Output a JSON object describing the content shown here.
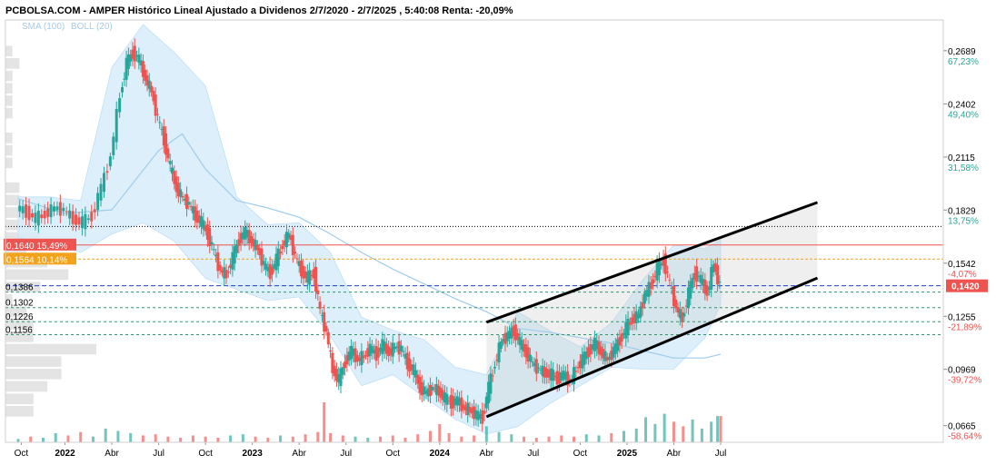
{
  "colors": {
    "up": "#26a69a",
    "down": "#ef5350",
    "bollinger_fill": "#d6ecfa",
    "sma_line": "#9fcdec",
    "channel": "#000000",
    "red_level": "#ef5350",
    "orange_level": "#f2a31b",
    "blue_level": "#1f3fd1",
    "green_level": "#3d8f6c",
    "positive_pct": "#26a69a",
    "negative_pct": "#ef5350"
  },
  "chart_data": {
    "type": "candlestick",
    "title": "PCBOLSA.COM - AMPER Histórico Lineal Ajustado a Dividenos 2/7/2020 - 2/7/2025 , 5:40:08 Renta: -20,09%",
    "legend": [
      "SMA (100)",
      "BOLL (20)"
    ],
    "ylim": [
      0.0575,
      0.2855
    ],
    "y_axis_ticks": [
      {
        "value": 0.2689,
        "label": "0,2689",
        "pct": "67,23%"
      },
      {
        "value": 0.2402,
        "label": "0,2402",
        "pct": "49,40%"
      },
      {
        "value": 0.2115,
        "label": "0,2115",
        "pct": "31,58%"
      },
      {
        "value": 0.1829,
        "label": "0,1829",
        "pct": "13,75%"
      },
      {
        "value": 0.1542,
        "label": "0,1542",
        "pct": "-4,07%"
      },
      {
        "value": 0.1255,
        "label": "0,1255",
        "pct": "-21,89%"
      },
      {
        "value": 0.0969,
        "label": "0,0969",
        "pct": "-39,72%"
      },
      {
        "value": 0.0665,
        "label": "0,0665",
        "pct": "-58,64%"
      }
    ],
    "x_axis_ticks": [
      {
        "t": 0.2,
        "label": "Oct",
        "year": false
      },
      {
        "t": 3.0,
        "label": "2022",
        "year": true
      },
      {
        "t": 6.0,
        "label": "Abr",
        "year": false
      },
      {
        "t": 9.0,
        "label": "Jul",
        "year": false
      },
      {
        "t": 12.0,
        "label": "Oct",
        "year": false
      },
      {
        "t": 15.0,
        "label": "2023",
        "year": true
      },
      {
        "t": 18.0,
        "label": "Abr",
        "year": false
      },
      {
        "t": 21.0,
        "label": "Jul",
        "year": false
      },
      {
        "t": 24.0,
        "label": "Oct",
        "year": false
      },
      {
        "t": 27.0,
        "label": "2024",
        "year": true
      },
      {
        "t": 30.0,
        "label": "Abr",
        "year": false
      },
      {
        "t": 33.0,
        "label": "Jul",
        "year": false
      },
      {
        "t": 36.0,
        "label": "Oct",
        "year": false
      },
      {
        "t": 39.0,
        "label": "2025",
        "year": true
      },
      {
        "t": 42.0,
        "label": "Abr",
        "year": false
      },
      {
        "t": 45.0,
        "label": "Jul",
        "year": false
      }
    ],
    "price_levels": [
      {
        "value": 0.164,
        "label": "0,1640",
        "pct": "15,49%",
        "style": "red"
      },
      {
        "value": 0.1564,
        "label": "0,1564",
        "pct": "10,14%",
        "style": "orange"
      },
      {
        "value": 0.142,
        "label": "0,1420",
        "style": "blue"
      },
      {
        "value": 0.1386,
        "label": "0,1386",
        "style": "green"
      },
      {
        "value": 0.1302,
        "label": "0,1302",
        "style": "green"
      },
      {
        "value": 0.1226,
        "label": "0,1226",
        "style": "green"
      },
      {
        "value": 0.1156,
        "label": "0,1156",
        "style": "green"
      },
      {
        "value": 0.174,
        "style": "black"
      }
    ],
    "current_price_tag": {
      "value": 0.142,
      "label": "0,1420"
    },
    "trend_channel": {
      "upper": [
        {
          "t": 30.0,
          "v": 0.1223
        },
        {
          "t": 51.2,
          "v": 0.187
        }
      ],
      "lower": [
        {
          "t": 30.0,
          "v": 0.0713
        },
        {
          "t": 51.2,
          "v": 0.1462
        }
      ]
    },
    "closes": [
      [
        0.0,
        0.184
      ],
      [
        0.6,
        0.182
      ],
      [
        1.2,
        0.178
      ],
      [
        1.8,
        0.181
      ],
      [
        2.4,
        0.184
      ],
      [
        3.0,
        0.183
      ],
      [
        3.6,
        0.178
      ],
      [
        4.2,
        0.176
      ],
      [
        4.8,
        0.18
      ],
      [
        5.4,
        0.195
      ],
      [
        6.0,
        0.212
      ],
      [
        6.6,
        0.245
      ],
      [
        7.0,
        0.262
      ],
      [
        7.4,
        0.268
      ],
      [
        7.8,
        0.264
      ],
      [
        8.2,
        0.254
      ],
      [
        8.6,
        0.247
      ],
      [
        9.0,
        0.232
      ],
      [
        9.4,
        0.221
      ],
      [
        9.8,
        0.206
      ],
      [
        10.2,
        0.195
      ],
      [
        10.6,
        0.189
      ],
      [
        11.0,
        0.186
      ],
      [
        11.4,
        0.18
      ],
      [
        11.8,
        0.176
      ],
      [
        12.2,
        0.17
      ],
      [
        12.6,
        0.16
      ],
      [
        13.0,
        0.15
      ],
      [
        13.4,
        0.148
      ],
      [
        13.8,
        0.157
      ],
      [
        14.2,
        0.167
      ],
      [
        14.6,
        0.171
      ],
      [
        15.0,
        0.166
      ],
      [
        15.4,
        0.162
      ],
      [
        15.8,
        0.153
      ],
      [
        16.2,
        0.149
      ],
      [
        16.6,
        0.156
      ],
      [
        17.0,
        0.164
      ],
      [
        17.4,
        0.17
      ],
      [
        17.8,
        0.158
      ],
      [
        18.2,
        0.15
      ],
      [
        18.6,
        0.146
      ],
      [
        19.0,
        0.149
      ],
      [
        19.4,
        0.128
      ],
      [
        19.8,
        0.117
      ],
      [
        20.2,
        0.097
      ],
      [
        20.6,
        0.091
      ],
      [
        21.0,
        0.101
      ],
      [
        21.4,
        0.107
      ],
      [
        21.8,
        0.102
      ],
      [
        22.2,
        0.104
      ],
      [
        22.6,
        0.108
      ],
      [
        23.0,
        0.105
      ],
      [
        23.4,
        0.11
      ],
      [
        23.8,
        0.106
      ],
      [
        24.2,
        0.109
      ],
      [
        24.6,
        0.108
      ],
      [
        25.0,
        0.1
      ],
      [
        25.4,
        0.096
      ],
      [
        25.8,
        0.087
      ],
      [
        26.2,
        0.084
      ],
      [
        26.6,
        0.087
      ],
      [
        27.0,
        0.085
      ],
      [
        27.4,
        0.081
      ],
      [
        27.8,
        0.079
      ],
      [
        28.2,
        0.08
      ],
      [
        28.6,
        0.076
      ],
      [
        29.0,
        0.075
      ],
      [
        29.4,
        0.072
      ],
      [
        29.8,
        0.071
      ],
      [
        30.2,
        0.087
      ],
      [
        30.6,
        0.1
      ],
      [
        31.0,
        0.112
      ],
      [
        31.4,
        0.115
      ],
      [
        31.8,
        0.118
      ],
      [
        32.2,
        0.111
      ],
      [
        32.6,
        0.106
      ],
      [
        33.0,
        0.1
      ],
      [
        33.4,
        0.097
      ],
      [
        33.8,
        0.095
      ],
      [
        34.2,
        0.094
      ],
      [
        34.6,
        0.092
      ],
      [
        35.0,
        0.094
      ],
      [
        35.4,
        0.09
      ],
      [
        35.8,
        0.097
      ],
      [
        36.2,
        0.102
      ],
      [
        36.6,
        0.107
      ],
      [
        37.0,
        0.111
      ],
      [
        37.4,
        0.106
      ],
      [
        37.8,
        0.102
      ],
      [
        38.2,
        0.107
      ],
      [
        38.6,
        0.113
      ],
      [
        39.0,
        0.119
      ],
      [
        39.4,
        0.124
      ],
      [
        39.8,
        0.126
      ],
      [
        40.2,
        0.137
      ],
      [
        40.6,
        0.143
      ],
      [
        41.0,
        0.151
      ],
      [
        41.4,
        0.156
      ],
      [
        41.8,
        0.143
      ],
      [
        42.2,
        0.13
      ],
      [
        42.6,
        0.124
      ],
      [
        43.0,
        0.138
      ],
      [
        43.4,
        0.149
      ],
      [
        43.8,
        0.145
      ],
      [
        44.2,
        0.138
      ],
      [
        44.6,
        0.154
      ],
      [
        45.0,
        0.142
      ]
    ],
    "bollinger": {
      "upper": [
        [
          0.0,
          0.19
        ],
        [
          2.0,
          0.19
        ],
        [
          4.0,
          0.188
        ],
        [
          6.0,
          0.26
        ],
        [
          8.0,
          0.283
        ],
        [
          10.0,
          0.268
        ],
        [
          12.0,
          0.25
        ],
        [
          14.0,
          0.19
        ],
        [
          16.0,
          0.175
        ],
        [
          18.0,
          0.176
        ],
        [
          20.0,
          0.16
        ],
        [
          22.0,
          0.125
        ],
        [
          24.0,
          0.118
        ],
        [
          26.0,
          0.113
        ],
        [
          28.0,
          0.098
        ],
        [
          30.0,
          0.094
        ],
        [
          32.0,
          0.128
        ],
        [
          34.0,
          0.118
        ],
        [
          36.0,
          0.109
        ],
        [
          38.0,
          0.122
        ],
        [
          40.0,
          0.145
        ],
        [
          42.0,
          0.164
        ],
        [
          44.0,
          0.162
        ],
        [
          45.0,
          0.167
        ]
      ],
      "lower": [
        [
          0.0,
          0.168
        ],
        [
          2.0,
          0.165
        ],
        [
          4.0,
          0.16
        ],
        [
          6.0,
          0.17
        ],
        [
          8.0,
          0.176
        ],
        [
          10.0,
          0.166
        ],
        [
          12.0,
          0.146
        ],
        [
          14.0,
          0.14
        ],
        [
          16.0,
          0.134
        ],
        [
          18.0,
          0.136
        ],
        [
          20.0,
          0.115
        ],
        [
          22.0,
          0.088
        ],
        [
          24.0,
          0.094
        ],
        [
          26.0,
          0.082
        ],
        [
          28.0,
          0.07
        ],
        [
          30.0,
          0.062
        ],
        [
          32.0,
          0.066
        ],
        [
          34.0,
          0.078
        ],
        [
          36.0,
          0.088
        ],
        [
          38.0,
          0.098
        ],
        [
          40.0,
          0.097
        ],
        [
          42.0,
          0.097
        ],
        [
          44.0,
          0.114
        ],
        [
          45.0,
          0.132
        ]
      ]
    },
    "sma100": [
      [
        0.0,
        0.189
      ],
      [
        3.0,
        0.181
      ],
      [
        6.0,
        0.183
      ],
      [
        9.0,
        0.215
      ],
      [
        10.5,
        0.224
      ],
      [
        12.0,
        0.205
      ],
      [
        14.0,
        0.188
      ],
      [
        16.0,
        0.184
      ],
      [
        18.0,
        0.179
      ],
      [
        20.0,
        0.17
      ],
      [
        22.0,
        0.16
      ],
      [
        24.0,
        0.151
      ],
      [
        26.0,
        0.143
      ],
      [
        28.0,
        0.135
      ],
      [
        30.0,
        0.128
      ],
      [
        32.0,
        0.119
      ],
      [
        34.0,
        0.117
      ],
      [
        36.0,
        0.114
      ],
      [
        38.0,
        0.111
      ],
      [
        40.0,
        0.107
      ],
      [
        42.0,
        0.103
      ],
      [
        44.0,
        0.103
      ],
      [
        45.0,
        0.105
      ]
    ],
    "volume": [
      [
        0.0,
        3
      ],
      [
        0.8,
        5
      ],
      [
        1.6,
        4
      ],
      [
        2.4,
        8
      ],
      [
        3.2,
        6
      ],
      [
        4.0,
        9
      ],
      [
        4.8,
        5
      ],
      [
        5.6,
        12
      ],
      [
        6.4,
        10
      ],
      [
        7.2,
        8
      ],
      [
        8.0,
        6
      ],
      [
        8.8,
        7
      ],
      [
        9.6,
        5
      ],
      [
        10.4,
        4
      ],
      [
        11.2,
        6
      ],
      [
        12.0,
        5
      ],
      [
        12.8,
        4
      ],
      [
        13.6,
        6
      ],
      [
        14.4,
        7
      ],
      [
        15.2,
        5
      ],
      [
        16.0,
        4
      ],
      [
        16.8,
        6
      ],
      [
        17.6,
        5
      ],
      [
        18.4,
        7
      ],
      [
        19.2,
        9
      ],
      [
        19.6,
        35
      ],
      [
        20.0,
        8
      ],
      [
        20.8,
        6
      ],
      [
        21.6,
        5
      ],
      [
        22.4,
        4
      ],
      [
        23.2,
        5
      ],
      [
        24.0,
        6
      ],
      [
        24.8,
        4
      ],
      [
        25.6,
        7
      ],
      [
        26.4,
        10
      ],
      [
        27.0,
        16
      ],
      [
        27.6,
        8
      ],
      [
        28.4,
        5
      ],
      [
        29.2,
        6
      ],
      [
        30.0,
        14
      ],
      [
        30.8,
        9
      ],
      [
        31.6,
        7
      ],
      [
        32.4,
        5
      ],
      [
        33.2,
        4
      ],
      [
        34.0,
        5
      ],
      [
        34.8,
        6
      ],
      [
        35.6,
        5
      ],
      [
        36.4,
        7
      ],
      [
        37.2,
        6
      ],
      [
        38.0,
        8
      ],
      [
        38.8,
        10
      ],
      [
        39.6,
        12
      ],
      [
        40.2,
        22
      ],
      [
        40.8,
        16
      ],
      [
        41.4,
        25
      ],
      [
        42.0,
        18
      ],
      [
        42.6,
        14
      ],
      [
        43.2,
        20
      ],
      [
        43.8,
        12
      ],
      [
        44.4,
        18
      ],
      [
        44.8,
        23
      ],
      [
        45.0,
        23
      ]
    ]
  }
}
